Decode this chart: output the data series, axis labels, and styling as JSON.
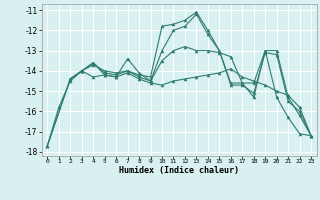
{
  "title": "",
  "xlabel": "Humidex (Indice chaleur)",
  "ylabel": "",
  "bg_color": "#d8f0f0",
  "grid_color": "#ffffff",
  "line_color": "#2e7d6e",
  "xlim": [
    -0.5,
    23.5
  ],
  "ylim": [
    -18.2,
    -10.7
  ],
  "yticks": [
    -18,
    -17,
    -16,
    -15,
    -14,
    -13,
    -12,
    -11
  ],
  "xticks": [
    0,
    1,
    2,
    3,
    4,
    5,
    6,
    7,
    8,
    9,
    10,
    11,
    12,
    13,
    14,
    15,
    16,
    17,
    18,
    19,
    20,
    21,
    22,
    23
  ],
  "lines": [
    {
      "x": [
        0,
        1,
        2,
        3,
        4,
        5,
        6,
        7,
        8,
        9,
        10,
        11,
        12,
        13,
        14,
        15,
        16,
        17,
        18,
        19,
        20,
        21,
        22,
        23
      ],
      "y": [
        -17.7,
        -15.8,
        -14.5,
        -14.0,
        -13.7,
        -14.0,
        -14.1,
        -14.0,
        -14.2,
        -14.3,
        -11.8,
        -11.7,
        -11.5,
        -11.1,
        -12.0,
        -13.0,
        -14.6,
        -14.6,
        -15.3,
        -13.0,
        -15.3,
        -16.3,
        -17.1,
        -17.2
      ]
    },
    {
      "x": [
        0,
        2,
        3,
        4,
        5,
        6,
        7,
        8,
        9,
        10,
        11,
        12,
        13,
        14,
        15,
        16,
        17,
        18,
        19,
        20,
        21,
        22,
        23
      ],
      "y": [
        -17.7,
        -14.4,
        -14.0,
        -13.6,
        -14.2,
        -14.3,
        -13.4,
        -14.1,
        -14.5,
        -13.5,
        -13.0,
        -12.8,
        -13.0,
        -13.0,
        -13.1,
        -13.3,
        -14.6,
        -14.6,
        -13.0,
        -13.0,
        -15.3,
        -16.2,
        -17.2
      ]
    },
    {
      "x": [
        0,
        2,
        3,
        4,
        5,
        6,
        7,
        8,
        9,
        10,
        11,
        12,
        13,
        14,
        15,
        16,
        17,
        18,
        19,
        20,
        21,
        22,
        23
      ],
      "y": [
        -17.7,
        -14.4,
        -14.0,
        -14.3,
        -14.2,
        -14.3,
        -14.1,
        -14.4,
        -14.6,
        -14.7,
        -14.5,
        -14.4,
        -14.3,
        -14.2,
        -14.1,
        -13.9,
        -14.3,
        -14.5,
        -14.7,
        -15.0,
        -15.2,
        -15.8,
        -17.2
      ]
    },
    {
      "x": [
        2,
        3,
        4,
        5,
        6,
        7,
        8,
        9,
        10,
        11,
        12,
        13,
        14,
        15,
        16,
        17,
        18,
        19,
        20,
        21,
        22,
        23
      ],
      "y": [
        -14.4,
        -14.0,
        -13.6,
        -14.1,
        -14.2,
        -14.0,
        -14.3,
        -14.5,
        -13.0,
        -12.0,
        -11.8,
        -11.2,
        -12.2,
        -13.0,
        -14.7,
        -14.7,
        -15.1,
        -13.1,
        -13.2,
        -15.5,
        -16.0,
        -17.2
      ]
    }
  ]
}
